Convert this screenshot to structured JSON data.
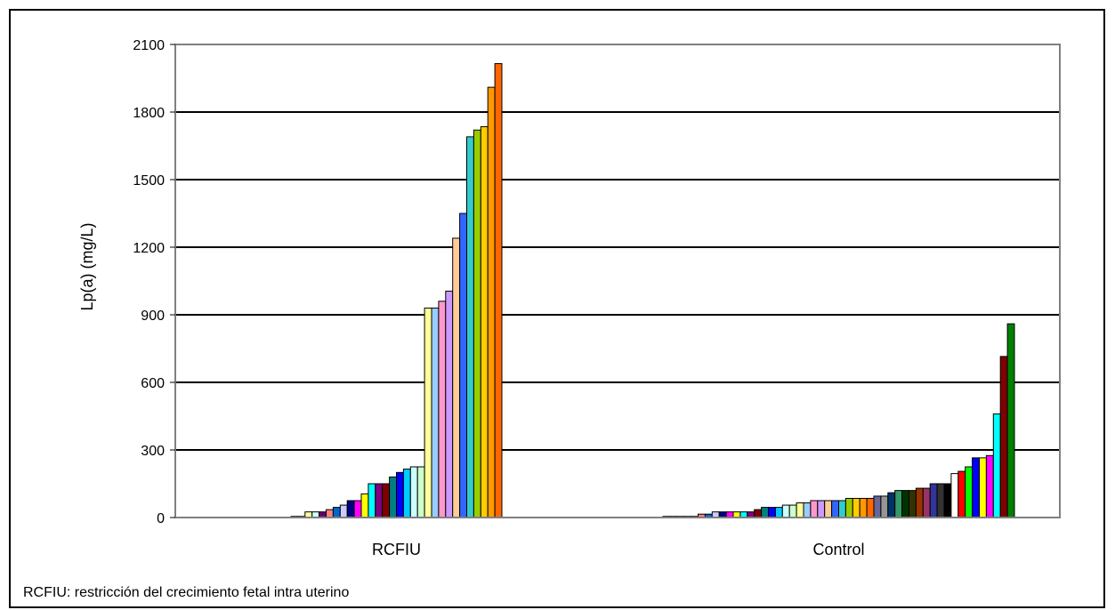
{
  "chart_data": {
    "type": "bar",
    "title": "",
    "ylabel": "Lp(a)  (mg/L)",
    "xlabel": "",
    "ylim": [
      0,
      2100
    ],
    "yticks": [
      0,
      300,
      600,
      900,
      1200,
      1500,
      1800,
      2100
    ],
    "grid": true,
    "categories": [
      "RCFIU",
      "Control"
    ],
    "groups": [
      {
        "name": "RCFIU",
        "values": [
          5,
          5,
          25,
          25,
          25,
          35,
          45,
          55,
          75,
          75,
          105,
          150,
          150,
          150,
          180,
          200,
          215,
          225,
          225,
          930,
          930,
          960,
          1005,
          1240,
          1350,
          1690,
          1720,
          1735,
          1910,
          2015
        ],
        "colors": [
          "#000080",
          "#ff00ff",
          "#ffff99",
          "#ccffff",
          "#660066",
          "#ff8080",
          "#0066cc",
          "#ccccff",
          "#000080",
          "#ff00ff",
          "#ffff00",
          "#00ffff",
          "#800080",
          "#800000",
          "#008080",
          "#0000ff",
          "#00ccff",
          "#ccffff",
          "#ccffcc",
          "#ffff99",
          "#99ccff",
          "#ff99cc",
          "#cc99ff",
          "#ffcc99",
          "#3366ff",
          "#33cccc",
          "#99cc00",
          "#ffcc00",
          "#ff9900",
          "#ff6600"
        ]
      },
      {
        "name": "Control",
        "values": [
          5,
          5,
          5,
          5,
          5,
          15,
          15,
          25,
          25,
          25,
          25,
          25,
          25,
          35,
          45,
          45,
          45,
          55,
          55,
          65,
          65,
          75,
          75,
          75,
          75,
          75,
          85,
          85,
          85,
          85,
          95,
          95,
          110,
          120,
          120,
          120,
          130,
          130,
          150,
          150,
          150,
          195,
          205,
          225,
          265,
          265,
          275,
          460,
          715,
          860
        ],
        "colors": [
          "#000080",
          "#ff00ff",
          "#ffff00",
          "#00ffff",
          "#800080",
          "#ff8080",
          "#0066cc",
          "#ccccff",
          "#000080",
          "#ff00ff",
          "#ffff00",
          "#00ffff",
          "#800080",
          "#800000",
          "#008080",
          "#0000ff",
          "#00ccff",
          "#ccffff",
          "#ccffcc",
          "#ffff99",
          "#99ccff",
          "#ff99cc",
          "#cc99ff",
          "#ffcc99",
          "#3366ff",
          "#33cccc",
          "#99cc00",
          "#ffcc00",
          "#ff9900",
          "#ff6600",
          "#666699",
          "#969696",
          "#003366",
          "#339966",
          "#003300",
          "#333300",
          "#993300",
          "#993366",
          "#333399",
          "#333333",
          "#000000",
          "#ffffff",
          "#ff0000",
          "#00ff00",
          "#0000ff",
          "#ffff00",
          "#ff00ff",
          "#00ffff",
          "#800000",
          "#008000"
        ]
      }
    ]
  },
  "footnote": "RCFIU: restricción del crecimiento fetal intra uterino"
}
